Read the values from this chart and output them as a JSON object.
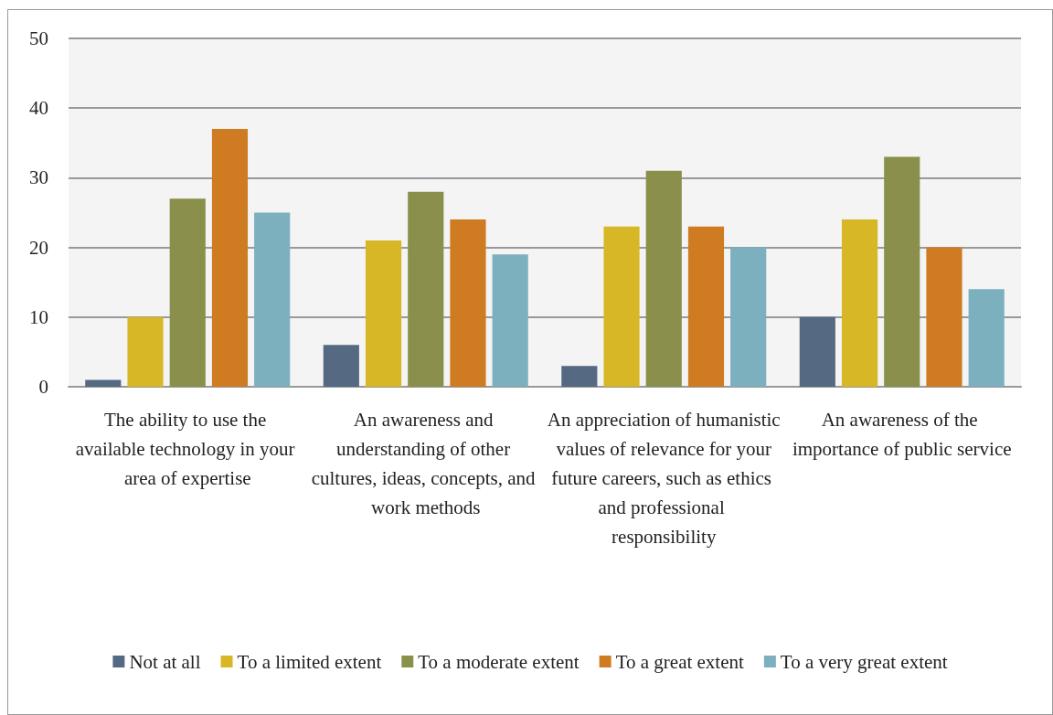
{
  "chart_data": {
    "type": "bar",
    "categories": [
      "The ability to use the available technology in your area of expertise",
      "An awareness and understanding of other cultures, ideas, concepts, and work methods",
      "An appreciation of humanistic values of relevance for your future careers, such as ethics and professional responsibility",
      "An awareness of the importance of public service"
    ],
    "series": [
      {
        "name": "Not at all",
        "color": "#556a82",
        "values": [
          1,
          6,
          3,
          10
        ]
      },
      {
        "name": "To a limited extent",
        "color": "#d8b726",
        "values": [
          10,
          21,
          23,
          24
        ]
      },
      {
        "name": "To a moderate extent",
        "color": "#8a904b",
        "values": [
          27,
          28,
          31,
          33
        ]
      },
      {
        "name": "To a great extent",
        "color": "#ce7b22",
        "values": [
          37,
          24,
          23,
          20
        ]
      },
      {
        "name": "To a very great extent",
        "color": "#7cb0bf",
        "values": [
          25,
          19,
          20,
          14
        ]
      }
    ],
    "ylim": [
      0,
      50
    ],
    "yticks": [
      0,
      10,
      20,
      30,
      40,
      50
    ],
    "grid": "y",
    "legend": "bottom"
  }
}
